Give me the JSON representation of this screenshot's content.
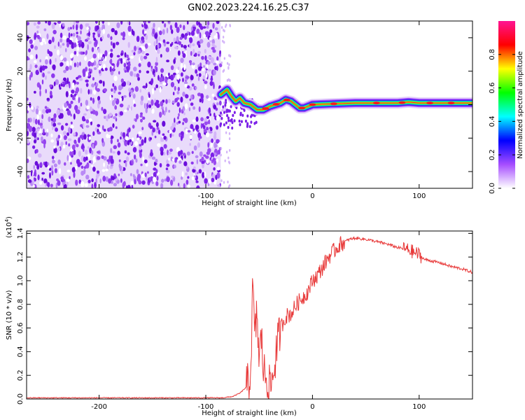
{
  "title": "GN02.2023.224.16.25.C37",
  "chart_data": [
    {
      "type": "heatmap",
      "xlabel": "Height of straight line (km)",
      "ylabel": "Frequency (Hz)",
      "xlim": [
        -268,
        150
      ],
      "ylim": [
        -50,
        50
      ],
      "xticks": [
        "-200",
        "-100",
        "0",
        "100"
      ],
      "yticks": [
        "-40",
        "-20",
        "0",
        "20",
        "40"
      ],
      "colorbar": {
        "label": "Normalized spectral amplitude",
        "range": [
          0,
          1
        ],
        "ticks": [
          "0.0",
          "0.2",
          "0.4",
          "0.6",
          "0.8"
        ],
        "colors": [
          "#ffffff",
          "#a64dff",
          "#0000ff",
          "#00ffff",
          "#00ff00",
          "#ffff00",
          "#ff0000",
          "#ff1493"
        ]
      },
      "noise_region_x": [
        -268,
        -86
      ],
      "signal_ridge": {
        "x": [
          -86,
          -80,
          -76,
          -72,
          -68,
          -64,
          -58,
          -52,
          -46,
          -40,
          -35,
          -30,
          -25,
          -20,
          -16,
          -12,
          -8,
          -4,
          0,
          20,
          40,
          60,
          80,
          90,
          100,
          120,
          150
        ],
        "y": [
          6,
          9,
          5,
          2,
          4,
          1,
          0,
          -3,
          -3,
          -1,
          0,
          1,
          3,
          2,
          0,
          -2,
          -2,
          -1,
          0,
          0.5,
          1,
          1,
          1,
          1.5,
          1,
          1,
          1
        ]
      }
    },
    {
      "type": "line",
      "xlabel": "Height of straight line (km)",
      "ylabel": "SNR (10 * v/v)",
      "scale_label": "(x10",
      "scale_exponent": "4",
      "scale_close": ")",
      "xlim": [
        -268,
        150
      ],
      "ylim": [
        0,
        1.42
      ],
      "xticks": [
        "-200",
        "-100",
        "0",
        "100"
      ],
      "yticks": [
        "0.0",
        "0.2",
        "0.4",
        "0.6",
        "0.8",
        "1.0",
        "1.2",
        "1.4"
      ],
      "color": "#e83a3a",
      "x": [
        -268,
        -200,
        -120,
        -85,
        -75,
        -68,
        -62,
        -58,
        -56,
        -54,
        -52,
        -50,
        -48,
        -46,
        -44,
        -42,
        -40,
        -38,
        -36,
        -34,
        -30,
        -25,
        -20,
        -15,
        -10,
        -5,
        0,
        5,
        10,
        15,
        20,
        25,
        30,
        35,
        40,
        50,
        60,
        70,
        80,
        85,
        90,
        95,
        100,
        105,
        110,
        120,
        130,
        140,
        150
      ],
      "y": [
        0.01,
        0.01,
        0.01,
        0.01,
        0.02,
        0.05,
        0.1,
        0.2,
        0.95,
        0.5,
        0.75,
        0.3,
        0.55,
        0.25,
        0.2,
        0.15,
        0.1,
        0.15,
        0.25,
        0.4,
        0.6,
        0.7,
        0.72,
        0.8,
        0.85,
        0.9,
        1.0,
        1.05,
        1.12,
        1.2,
        1.25,
        1.3,
        1.33,
        1.35,
        1.36,
        1.35,
        1.33,
        1.31,
        1.28,
        1.27,
        1.26,
        1.24,
        1.22,
        1.18,
        1.17,
        1.15,
        1.12,
        1.1,
        1.07
      ]
    }
  ]
}
